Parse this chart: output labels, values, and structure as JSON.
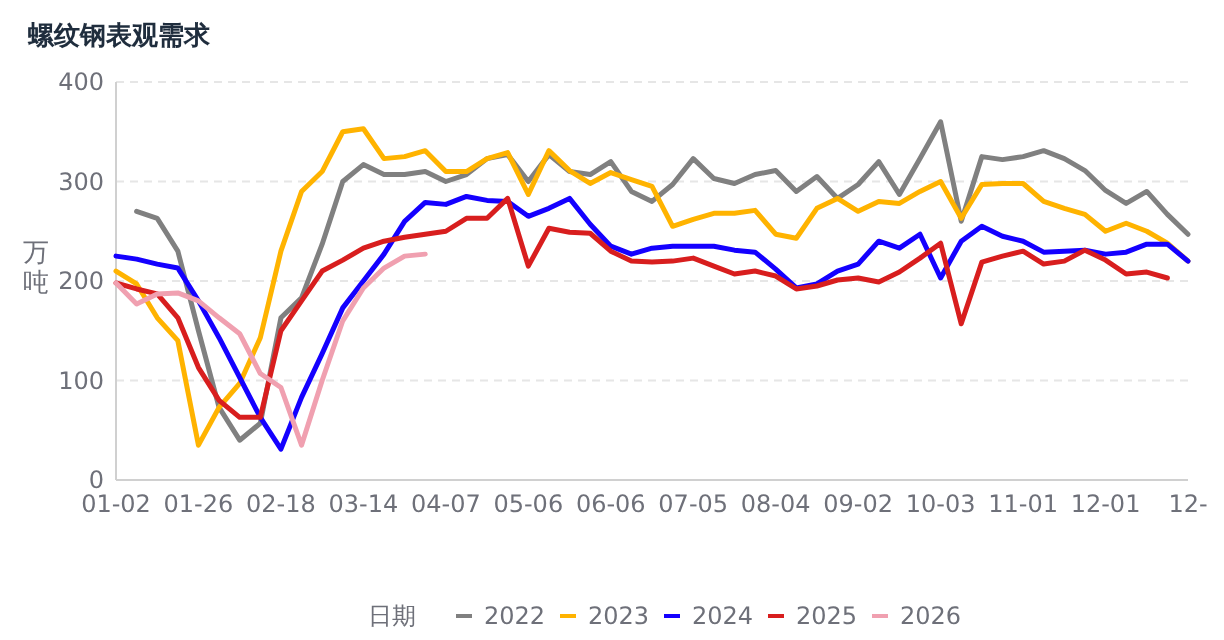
{
  "chart_data": {
    "type": "line",
    "title": "螺纹钢表观需求",
    "ylabel": "万吨",
    "legend_title": "日期",
    "categories": [
      "01-02",
      null,
      null,
      null,
      "01-26",
      null,
      null,
      null,
      "02-18",
      null,
      null,
      null,
      "03-14",
      null,
      null,
      null,
      "04-07",
      null,
      null,
      null,
      "05-06",
      null,
      null,
      null,
      "06-06",
      null,
      null,
      null,
      "07-05",
      null,
      null,
      null,
      "08-04",
      null,
      null,
      null,
      "09-02",
      null,
      null,
      null,
      "10-03",
      null,
      null,
      null,
      "11-01",
      null,
      null,
      null,
      "12-01",
      null,
      null,
      null,
      "12-"
    ],
    "ylim": [
      0,
      400
    ],
    "yticks": [
      0,
      100,
      200,
      300,
      400
    ],
    "grid": "y",
    "legend": "bottom",
    "marker": "none",
    "line_style": "solid",
    "series": [
      {
        "name": "2022",
        "color": "#808080",
        "values": [
          null,
          270,
          263,
          230,
          150,
          73,
          40,
          57,
          163,
          183,
          237,
          300,
          317,
          307,
          307,
          310,
          300,
          307,
          323,
          327,
          300,
          327,
          310,
          307,
          320,
          290,
          280,
          297,
          323,
          303,
          298,
          307,
          311,
          290,
          305,
          283,
          297,
          320,
          287,
          323,
          360,
          260,
          325,
          322,
          325,
          331,
          323,
          311,
          291,
          278,
          290,
          267,
          247
        ]
      },
      {
        "name": "2023",
        "color": "#ffb300",
        "values": [
          210,
          197,
          163,
          140,
          35,
          73,
          97,
          143,
          230,
          290,
          310,
          350,
          353,
          323,
          325,
          331,
          310,
          310,
          323,
          329,
          287,
          331,
          311,
          298,
          309,
          302,
          295,
          255,
          262,
          268,
          268,
          271,
          247,
          243,
          273,
          283,
          270,
          280,
          278,
          290,
          300,
          263,
          297,
          298,
          298,
          280,
          273,
          267,
          250,
          258,
          250,
          238,
          220
        ]
      },
      {
        "name": "2024",
        "color": "#1400ff",
        "values": [
          225,
          222,
          217,
          213,
          180,
          143,
          103,
          63,
          31,
          83,
          127,
          173,
          200,
          227,
          260,
          279,
          277,
          285,
          281,
          280,
          265,
          273,
          283,
          257,
          235,
          227,
          233,
          235,
          235,
          235,
          231,
          229,
          212,
          193,
          197,
          210,
          217,
          240,
          233,
          247,
          203,
          240,
          255,
          245,
          240,
          229,
          230,
          231,
          227,
          229,
          237,
          237,
          220
        ]
      },
      {
        "name": "2025",
        "color": "#d81e1e",
        "values": [
          198,
          192,
          187,
          163,
          113,
          80,
          63,
          63,
          150,
          180,
          210,
          221,
          233,
          240,
          244,
          247,
          250,
          263,
          263,
          283,
          215,
          253,
          249,
          248,
          230,
          220,
          219,
          220,
          223,
          215,
          207,
          210,
          205,
          192,
          195,
          201,
          203,
          199,
          209,
          223,
          238,
          157,
          219,
          225,
          230,
          217,
          220,
          231,
          221,
          207,
          209,
          203,
          null
        ]
      },
      {
        "name": "2026",
        "color": "#f0a0b0",
        "values": [
          198,
          177,
          187,
          188,
          180,
          163,
          147,
          107,
          93,
          35,
          100,
          160,
          193,
          213,
          225,
          227,
          null,
          null,
          null,
          null,
          null,
          null,
          null,
          null,
          null,
          null,
          null,
          null,
          null,
          null,
          null,
          null,
          null,
          null,
          null,
          null,
          null,
          null,
          null,
          null,
          null,
          null,
          null,
          null,
          null,
          null,
          null,
          null,
          null,
          null,
          null,
          null,
          null
        ]
      }
    ]
  }
}
